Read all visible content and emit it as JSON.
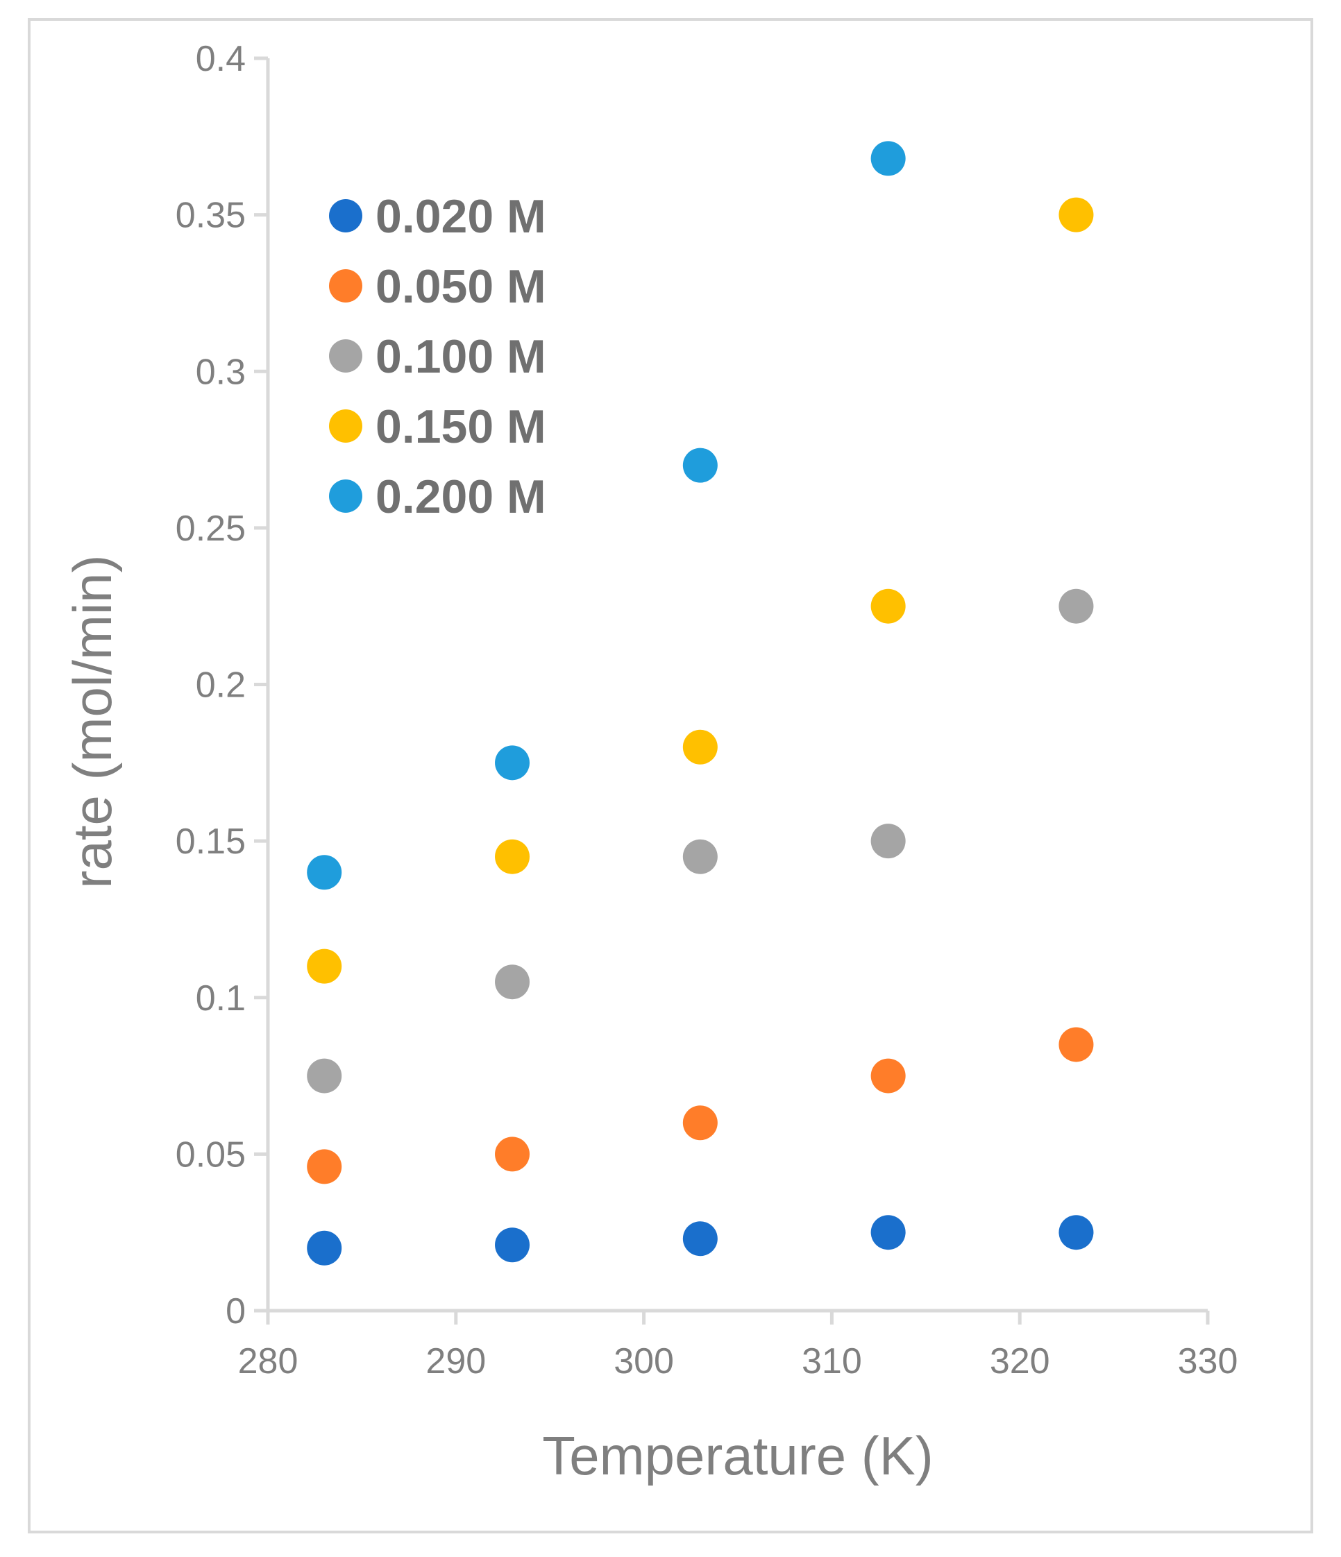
{
  "chart_data": {
    "type": "scatter",
    "title": "",
    "xlabel": "Temperature (K)",
    "ylabel": "rate (mol/min)",
    "xlim": [
      280,
      330
    ],
    "ylim": [
      0,
      0.4
    ],
    "x_ticks": [
      280,
      290,
      300,
      310,
      320,
      330
    ],
    "y_ticks": [
      0,
      0.05,
      0.1,
      0.15,
      0.2,
      0.25,
      0.3,
      0.35,
      0.4
    ],
    "x_tick_labels": [
      "280",
      "290",
      "300",
      "310",
      "320",
      "330"
    ],
    "y_tick_labels": [
      "0",
      "0.05",
      "0.1",
      "0.15",
      "0.2",
      "0.25",
      "0.3",
      "0.35",
      "0.4"
    ],
    "grid": false,
    "legend_position": "top-left",
    "series": [
      {
        "name": "0.020 M",
        "color": "#1a6fcc",
        "x": [
          283,
          293,
          303,
          313,
          323
        ],
        "y": [
          0.02,
          0.021,
          0.023,
          0.025,
          0.025
        ]
      },
      {
        "name": "0.050 M",
        "color": "#ff7d29",
        "x": [
          283,
          293,
          303,
          313,
          323
        ],
        "y": [
          0.046,
          0.05,
          0.06,
          0.075,
          0.085
        ]
      },
      {
        "name": "0.100 M",
        "color": "#a5a5a5",
        "x": [
          283,
          293,
          303,
          313,
          323
        ],
        "y": [
          0.075,
          0.105,
          0.145,
          0.15,
          0.225
        ]
      },
      {
        "name": "0.150 M",
        "color": "#ffc000",
        "x": [
          283,
          293,
          303,
          313,
          323
        ],
        "y": [
          0.11,
          0.145,
          0.18,
          0.225,
          0.35
        ]
      },
      {
        "name": "0.200 M",
        "color": "#1f9ddc",
        "x": [
          283,
          293,
          303,
          313
        ],
        "y": [
          0.14,
          0.175,
          0.27,
          0.368
        ]
      }
    ]
  },
  "colors": {
    "axis": "#d9d9d9",
    "text": "#7f7f7f",
    "frame": "#d9d9d9"
  }
}
